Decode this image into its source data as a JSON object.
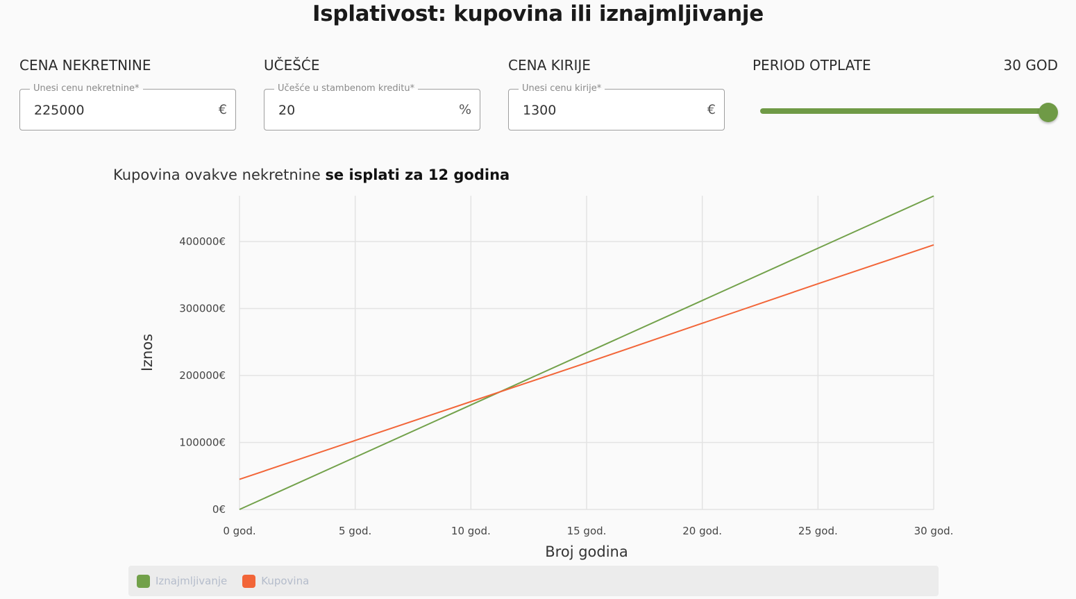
{
  "title": "Isplativost: kupovina ili iznajmljivanje",
  "fields": [
    {
      "label": "CENA NEKRETNINE",
      "floating_label": "Unesi cenu nekretnine*",
      "value": "225000",
      "adornment": "€"
    },
    {
      "label": "UČEŠĆE",
      "floating_label": "Učešće u stambenom kreditu*",
      "value": "20",
      "adornment": "%"
    },
    {
      "label": "CENA KIRIJE",
      "floating_label": "Unesi cenu kirije*",
      "value": "1300",
      "adornment": "€"
    }
  ],
  "slider": {
    "label": "PERIOD OTPLATE",
    "value_text": "30 GOD",
    "value": 30,
    "min": 0,
    "max": 30,
    "color": "#6f9a46"
  },
  "summary": {
    "prefix": "Kupovina ovakve nekretnine ",
    "highlight": "se isplati za 12 godina"
  },
  "chart_data": {
    "type": "line",
    "title": "Kupovina ovakve nekretnine se isplati za 12 godina",
    "xlabel": "Broj godina",
    "ylabel": "Iznos",
    "x": [
      0,
      5,
      10,
      15,
      20,
      25,
      30
    ],
    "x_tick_labels": [
      "0 god.",
      "5 god.",
      "10 god.",
      "15 god.",
      "20 god.",
      "25 god.",
      "30 god."
    ],
    "y_ticks": [
      0,
      100000,
      200000,
      300000,
      400000
    ],
    "y_tick_labels": [
      "0€",
      "100000€",
      "200000€",
      "300000€",
      "400000€"
    ],
    "ylim": [
      0,
      468000
    ],
    "xlim": [
      0,
      30
    ],
    "grid": true,
    "legend_position": "bottom",
    "series": [
      {
        "name": "Iznajmljivanje",
        "color": "#72a14a",
        "values": [
          0,
          78000,
          156000,
          234000,
          312000,
          390000,
          468000
        ]
      },
      {
        "name": "Kupovina",
        "color": "#f26538",
        "values": [
          45000,
          103000,
          161000,
          219000,
          278000,
          337000,
          395000
        ]
      }
    ]
  }
}
